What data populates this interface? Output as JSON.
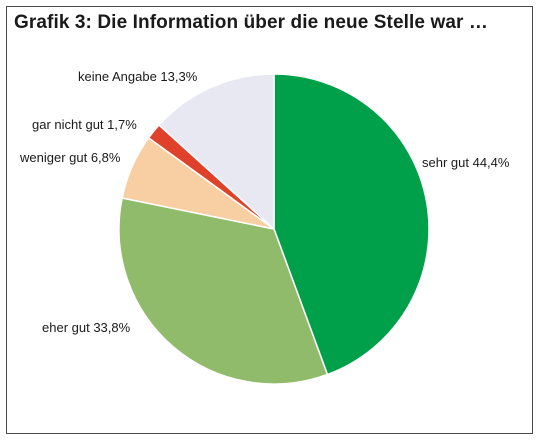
{
  "chart_data": {
    "type": "pie",
    "title": "Grafik 3: Die Information über die neue Stelle war …",
    "start_angle_deg": 0,
    "direction": "clockwise",
    "slices": [
      {
        "label": "sehr gut",
        "value": 44.4,
        "value_text": "44,4%",
        "color": "#00a04a"
      },
      {
        "label": "eher gut",
        "value": 33.8,
        "value_text": "33,8%",
        "color": "#8fbb6a"
      },
      {
        "label": "weniger gut",
        "value": 6.8,
        "value_text": "6,8%",
        "color": "#f8cfa3"
      },
      {
        "label": "gar nicht gut",
        "value": 1.7,
        "value_text": "1,7%",
        "color": "#e0412a"
      },
      {
        "label": "keine Angabe",
        "value": 13.3,
        "value_text": "13,3%",
        "color": "#e7e8f1"
      }
    ]
  }
}
